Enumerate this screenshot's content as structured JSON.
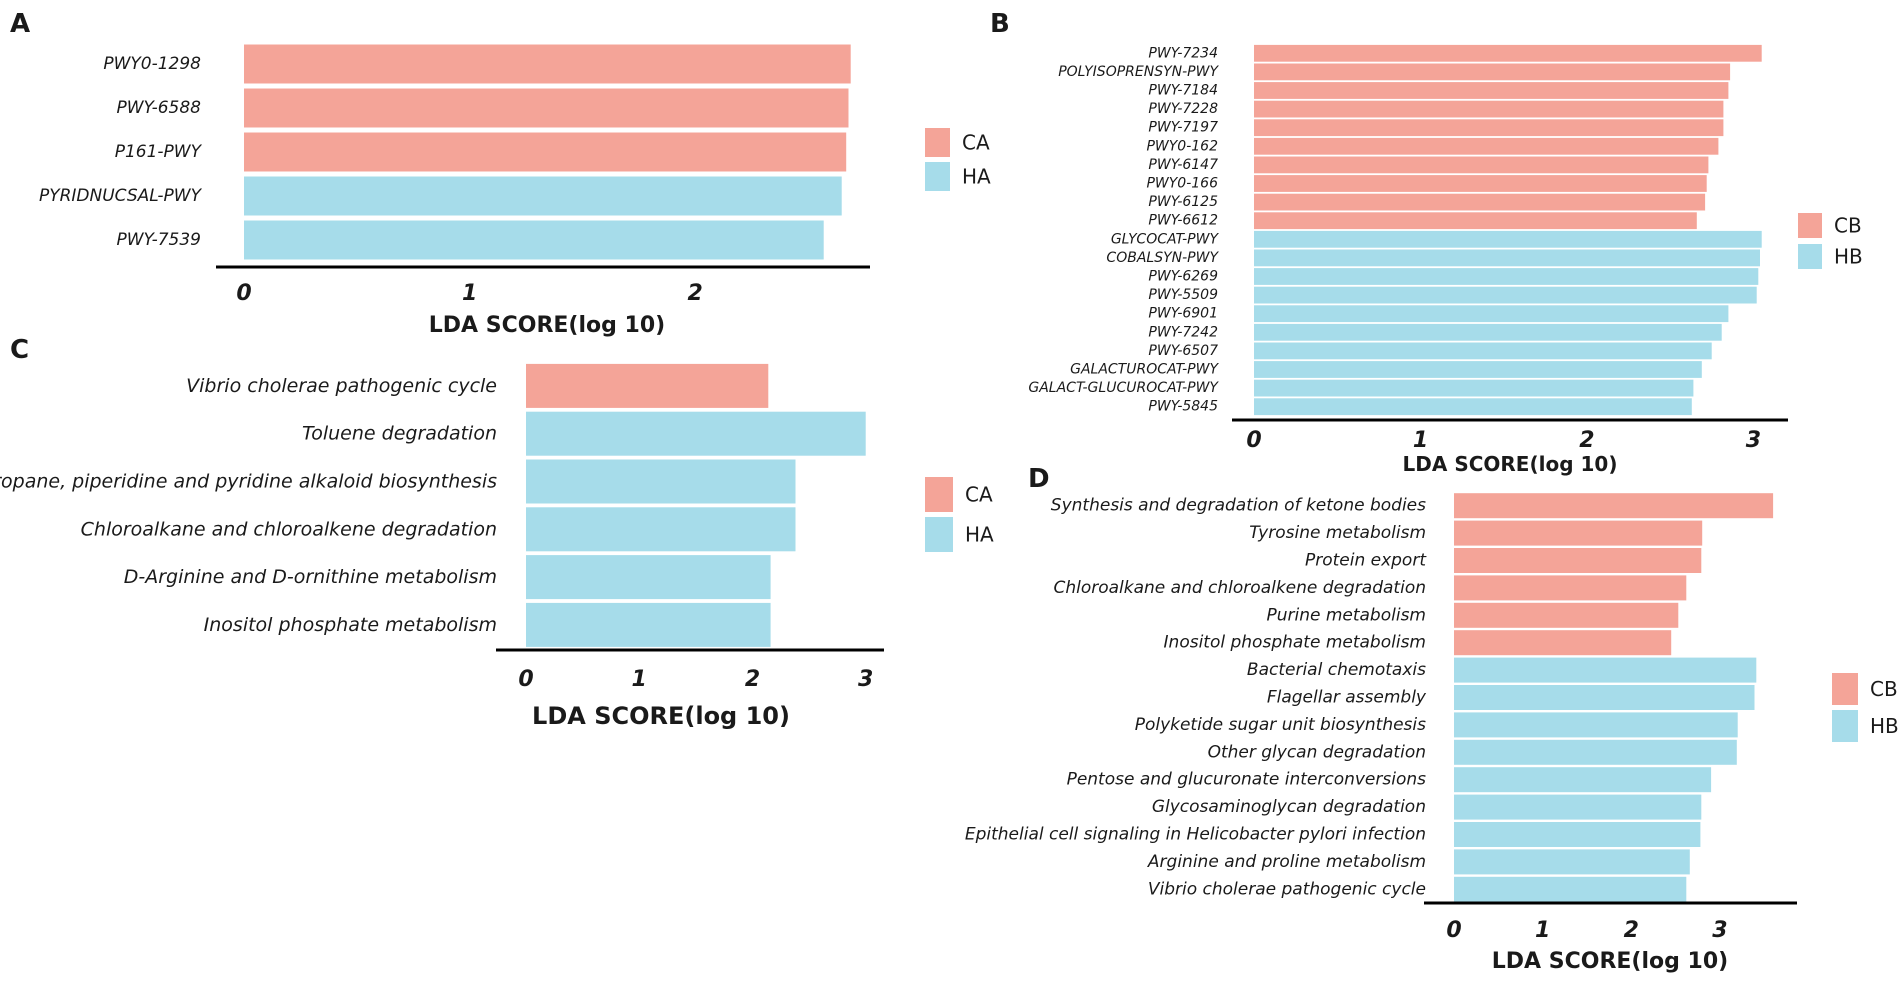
{
  "figure": {
    "panels": [
      "A",
      "B",
      "C",
      "D"
    ]
  },
  "colors": {
    "control": "#f4a498",
    "healthy": "#a6dcea",
    "axis": "#000000"
  },
  "chart_data": [
    {
      "panel": "A",
      "type": "bar",
      "orientation": "horizontal",
      "xlabel": "LDA SCORE(log 10)",
      "xlim": [
        0,
        2.7
      ],
      "xticks": [
        0,
        1,
        2
      ],
      "legend": [
        {
          "group": "CA",
          "label": "CA"
        },
        {
          "group": "HA",
          "label": "HA"
        }
      ],
      "categories": [
        "PWY0-1298",
        "PWY-6588",
        "P161-PWY",
        "PYRIDNUCSAL-PWY",
        "PWY-7539"
      ],
      "values": [
        2.69,
        2.68,
        2.67,
        2.65,
        2.57
      ],
      "groups": [
        "CA",
        "CA",
        "CA",
        "HA",
        "HA"
      ]
    },
    {
      "panel": "B",
      "type": "bar",
      "orientation": "horizontal",
      "xlabel": "LDA SCORE(log 10)",
      "xlim": [
        0,
        3.1
      ],
      "xticks": [
        0,
        1,
        2,
        3
      ],
      "legend": [
        {
          "group": "CB",
          "label": "CB"
        },
        {
          "group": "HB",
          "label": "HB"
        }
      ],
      "categories": [
        "PWY-7234",
        "POLYISOPRENSYN-PWY",
        "PWY-7184",
        "PWY-7228",
        "PWY-7197",
        "PWY0-162",
        "PWY-6147",
        "PWY0-166",
        "PWY-6125",
        "PWY-6612",
        "GLYCOCAT-PWY",
        "COBALSYN-PWY",
        "PWY-6269",
        "PWY-5509",
        "PWY-6901",
        "PWY-7242",
        "PWY-6507",
        "GALACTUROCAT-PWY",
        "GALACT-GLUCUROCAT-PWY",
        "PWY-5845"
      ],
      "values": [
        3.05,
        2.86,
        2.85,
        2.82,
        2.82,
        2.79,
        2.73,
        2.72,
        2.71,
        2.66,
        3.05,
        3.04,
        3.03,
        3.02,
        2.85,
        2.81,
        2.75,
        2.69,
        2.64,
        2.63
      ],
      "groups": [
        "CB",
        "CB",
        "CB",
        "CB",
        "CB",
        "CB",
        "CB",
        "CB",
        "CB",
        "CB",
        "HB",
        "HB",
        "HB",
        "HB",
        "HB",
        "HB",
        "HB",
        "HB",
        "HB",
        "HB"
      ]
    },
    {
      "panel": "C",
      "type": "bar",
      "orientation": "horizontal",
      "xlabel": "LDA SCORE(log 10)",
      "xlim": [
        0,
        3.1
      ],
      "xticks": [
        0,
        1,
        2,
        3
      ],
      "legend": [
        {
          "group": "CA",
          "label": "CA"
        },
        {
          "group": "HA",
          "label": "HA"
        }
      ],
      "categories": [
        "Vibrio cholerae pathogenic cycle",
        "Toluene degradation",
        "Tropane, piperidine and pyridine alkaloid biosynthesis",
        "Chloroalkane and chloroalkene degradation",
        "D-Arginine and D-ornithine metabolism",
        "Inositol phosphate metabolism"
      ],
      "values": [
        2.14,
        3.0,
        2.38,
        2.38,
        2.16,
        2.16
      ],
      "groups": [
        "CA",
        "HA",
        "HA",
        "HA",
        "HA",
        "HA"
      ]
    },
    {
      "panel": "D",
      "type": "bar",
      "orientation": "horizontal",
      "xlabel": "LDA SCORE(log 10)",
      "xlim": [
        0,
        3.7
      ],
      "xticks": [
        0,
        1,
        2,
        3
      ],
      "legend": [
        {
          "group": "CB",
          "label": "CB"
        },
        {
          "group": "HB",
          "label": "HB"
        }
      ],
      "categories": [
        "Synthesis and degradation of ketone bodies",
        "Tyrosine metabolism",
        "Protein export",
        "Chloroalkane and chloroalkene degradation",
        "Purine metabolism",
        "Inositol phosphate metabolism",
        "Bacterial chemotaxis",
        "Flagellar assembly",
        "Polyketide sugar unit biosynthesis",
        "Other glycan degradation",
        "Pentose and glucuronate interconversions",
        "Glycosaminoglycan degradation",
        "Epithelial cell signaling in Helicobacter pylori infection",
        "Arginine and proline metabolism",
        "Vibrio cholerae pathogenic cycle"
      ],
      "values": [
        3.6,
        2.8,
        2.79,
        2.62,
        2.53,
        2.45,
        3.41,
        3.39,
        3.2,
        3.19,
        2.9,
        2.79,
        2.78,
        2.66,
        2.62
      ],
      "groups": [
        "CB",
        "CB",
        "CB",
        "CB",
        "CB",
        "CB",
        "HB",
        "HB",
        "HB",
        "HB",
        "HB",
        "HB",
        "HB",
        "HB",
        "HB"
      ]
    }
  ]
}
